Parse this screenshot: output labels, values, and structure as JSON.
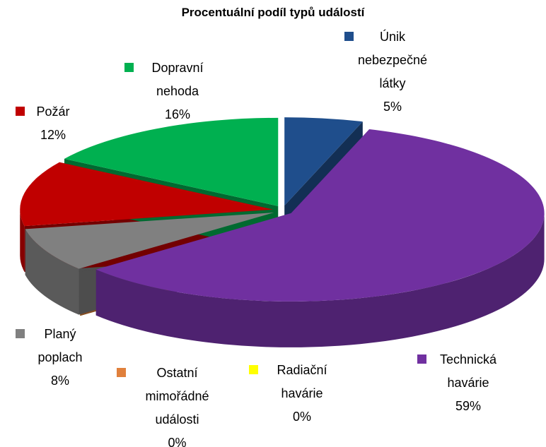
{
  "chart_data": {
    "type": "pie",
    "title": "Procentuální podíl typů událostí",
    "categories": [
      "Únik nebezpečné látky",
      "Technická havárie",
      "Radiační havárie",
      "Ostatní mimořádné události",
      "Planý poplach",
      "Požár",
      "Dopravní nehoda"
    ],
    "values": [
      5,
      59,
      0,
      0,
      8,
      12,
      16
    ],
    "value_labels": [
      "5%",
      "59%",
      "0%",
      "0%",
      "8%",
      "12%",
      "16%"
    ],
    "colors": [
      "#1f4e8c",
      "#7030a0",
      "#ffff00",
      "#e0803c",
      "#808080",
      "#c00000",
      "#00b050"
    ]
  }
}
